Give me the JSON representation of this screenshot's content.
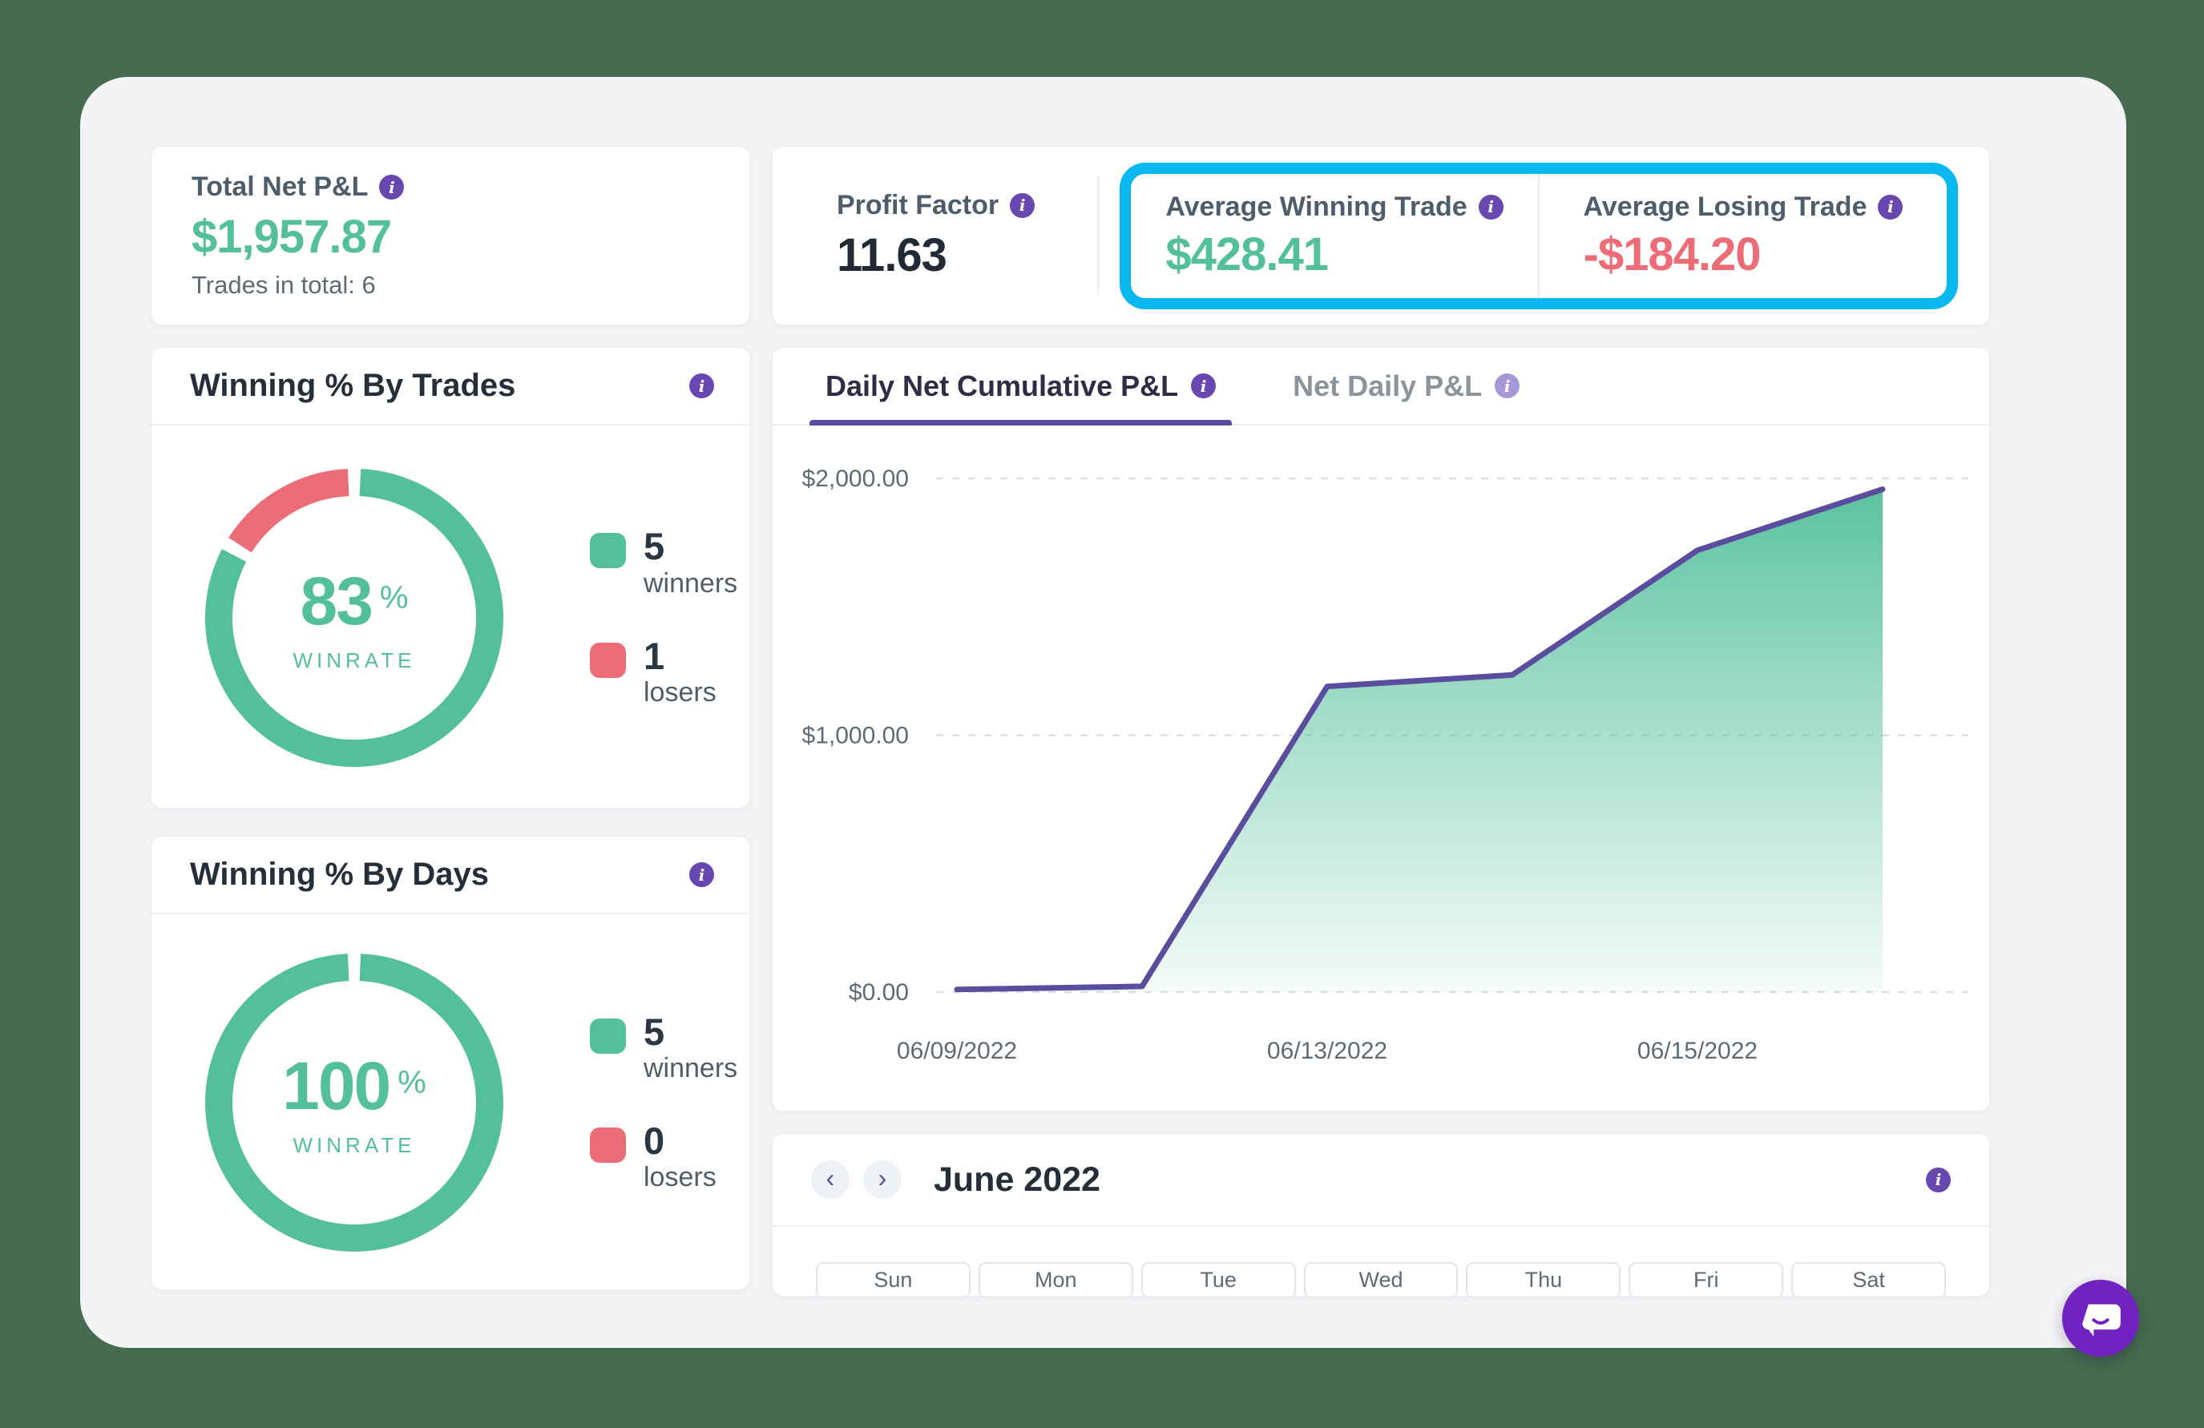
{
  "stats": {
    "total_net_pnl": {
      "title": "Total Net P&L",
      "value": "$1,957.87",
      "subtitle": "Trades in total: 6"
    },
    "profit_factor": {
      "title": "Profit Factor",
      "value": "11.63"
    },
    "avg_winning": {
      "title": "Average Winning Trade",
      "value": "$428.41"
    },
    "avg_losing": {
      "title": "Average Losing Trade",
      "value": "-$184.20"
    }
  },
  "winning_by_trades": {
    "title": "Winning % By Trades",
    "percent_sign": "%",
    "winrate_label": "WINRATE"
  },
  "winning_by_days": {
    "title": "Winning % By Days",
    "percent_sign": "%",
    "winrate_label": "WINRATE"
  },
  "pnl_panel": {
    "tab_active": "Daily Net Cumulative P&L",
    "tab_inactive": "Net Daily P&L"
  },
  "calendar": {
    "title": "June 2022",
    "prev_icon": "‹",
    "next_icon": "›",
    "day_headers": [
      "Sun",
      "Mon",
      "Tue",
      "Wed",
      "Thu",
      "Fri",
      "Sat"
    ]
  },
  "colors": {
    "green": "#53bf9c",
    "red": "#ec6d77",
    "line_purple": "#5b4d9e",
    "info_purple": "#6847b0",
    "highlight_cyan": "#0bb7ef",
    "chat_purple": "#7122c0",
    "background_green": "#466b4e"
  },
  "chart_data": [
    {
      "type": "donut",
      "name": "winning-by-trades",
      "winrate": 83,
      "segments": [
        {
          "label": "winners",
          "value": 5,
          "color": "#53bf9c"
        },
        {
          "label": "losers",
          "value": 1,
          "color": "#ec6d77"
        }
      ]
    },
    {
      "type": "donut",
      "name": "winning-by-days",
      "winrate": 100,
      "segments": [
        {
          "label": "winners",
          "value": 5,
          "color": "#53bf9c"
        },
        {
          "label": "losers",
          "value": 0,
          "color": "#ec6d77"
        }
      ]
    },
    {
      "type": "area",
      "name": "daily-net-cumulative-pnl",
      "title": "Daily Net Cumulative P&L",
      "x": [
        "06/09/2022",
        "06/10/2022",
        "06/13/2022",
        "06/14/2022",
        "06/15/2022",
        "06/16/2022"
      ],
      "values": [
        10,
        22,
        1190,
        1235,
        1720,
        1957.87
      ],
      "x_ticks": [
        {
          "index": 0,
          "label": "06/09/2022"
        },
        {
          "index": 2,
          "label": "06/13/2022"
        },
        {
          "index": 4,
          "label": "06/15/2022"
        }
      ],
      "y_ticks": [
        {
          "value": 0,
          "label": "$0.00"
        },
        {
          "value": 1000,
          "label": "$1,000.00"
        },
        {
          "value": 2000,
          "label": "$2,000.00"
        }
      ],
      "ylim": [
        0,
        2200
      ],
      "grid": "dashed-horizontal",
      "legend": "none",
      "line_color": "#5b4d9e",
      "fill_color": "#53bf9c"
    }
  ]
}
